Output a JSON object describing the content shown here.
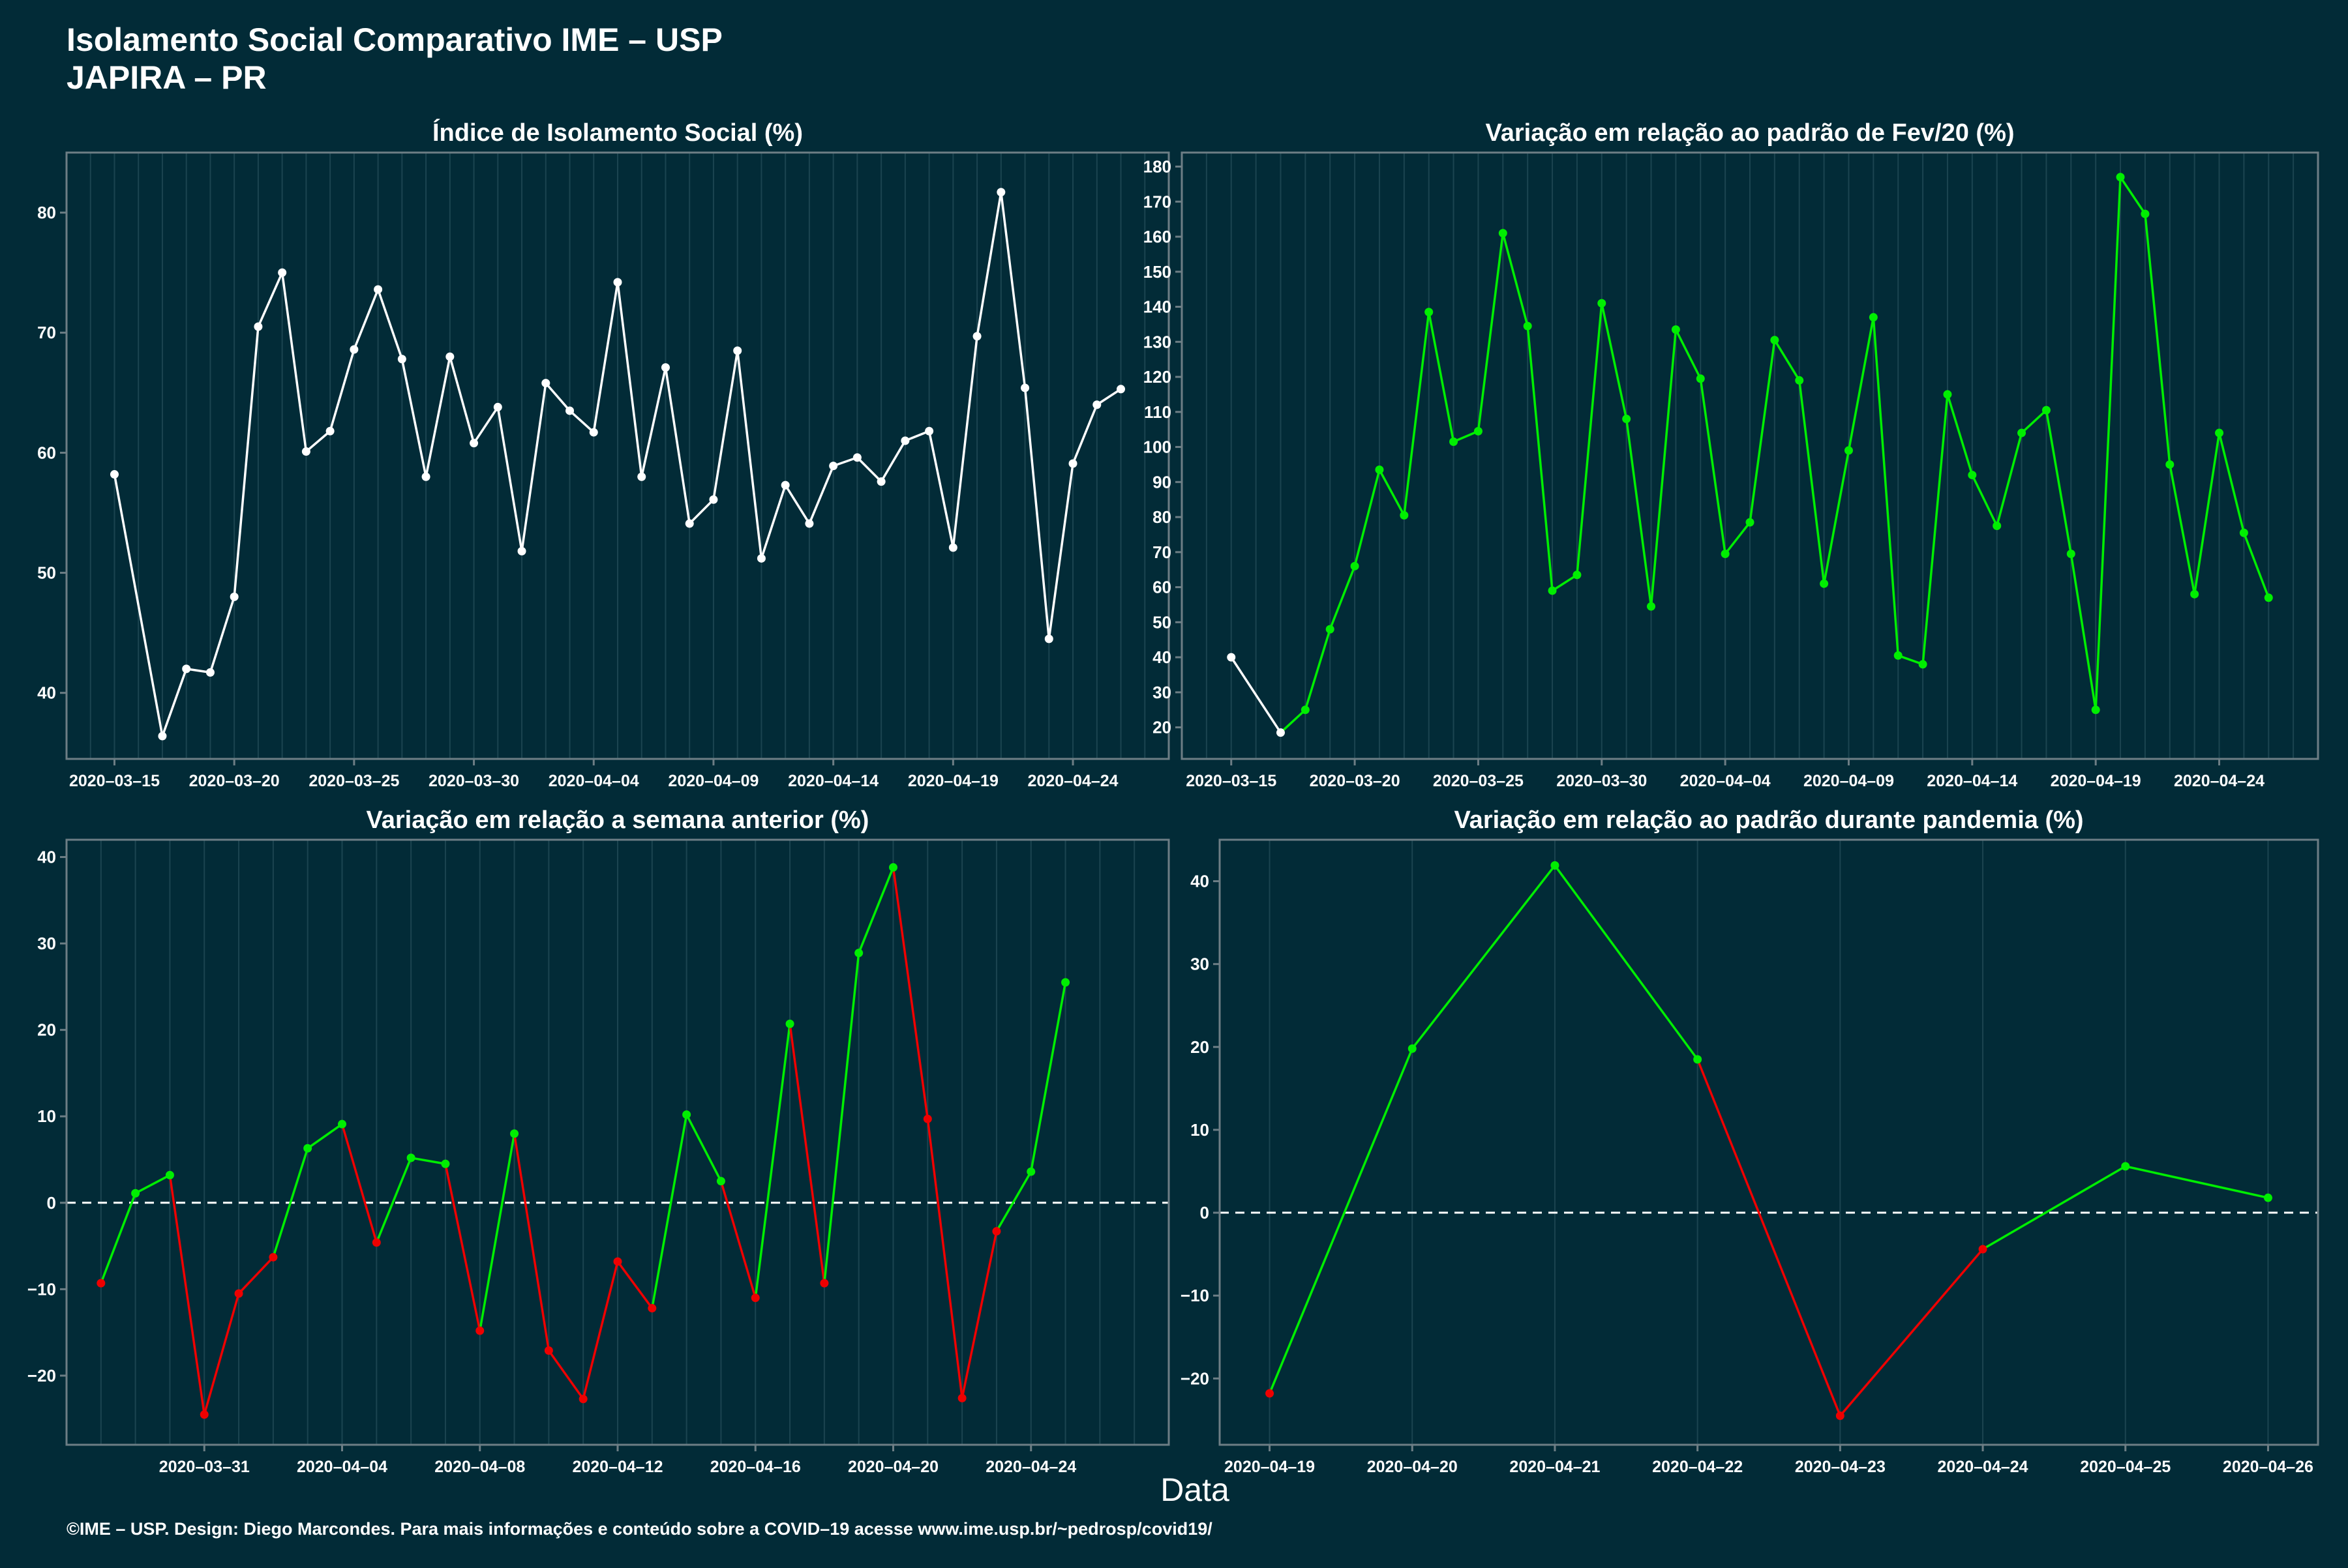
{
  "header": {
    "title_line1": "Isolamento Social Comparativo IME – USP",
    "title_line2": "JAPIRA – PR"
  },
  "x_axis_label": "Data",
  "footer": "©IME – USP. Design: Diego Marcondes. Para mais informações e conteúdo sobre a COVID–19 acesse www.ime.usp.br/~pedrosp/covid19/",
  "colors": {
    "background": "#022b37",
    "panel_border": "#6d7e85",
    "grid": "#1b4450",
    "white": "#ffffff",
    "green": "#00ee00",
    "red": "#ee0000"
  },
  "chart_data": [
    {
      "id": "isolamento",
      "type": "line",
      "title": "Índice de Isolamento Social (%)",
      "x_type": "date",
      "x": [
        "2020-03-15",
        "2020-03-17",
        "2020-03-18",
        "2020-03-19",
        "2020-03-20",
        "2020-03-21",
        "2020-03-22",
        "2020-03-23",
        "2020-03-24",
        "2020-03-25",
        "2020-03-26",
        "2020-03-27",
        "2020-03-28",
        "2020-03-29",
        "2020-03-30",
        "2020-03-31",
        "2020-04-01",
        "2020-04-02",
        "2020-04-03",
        "2020-04-04",
        "2020-04-05",
        "2020-04-06",
        "2020-04-07",
        "2020-04-08",
        "2020-04-09",
        "2020-04-10",
        "2020-04-11",
        "2020-04-12",
        "2020-04-13",
        "2020-04-14",
        "2020-04-15",
        "2020-04-16",
        "2020-04-17",
        "2020-04-18",
        "2020-04-19",
        "2020-04-20",
        "2020-04-21",
        "2020-04-22",
        "2020-04-23",
        "2020-04-24",
        "2020-04-25",
        "2020-04-26"
      ],
      "y": [
        58.2,
        36.4,
        42.0,
        41.7,
        48.0,
        70.5,
        75.0,
        60.1,
        61.8,
        68.6,
        73.6,
        67.8,
        58.0,
        68.0,
        60.8,
        63.8,
        51.8,
        65.8,
        63.5,
        61.7,
        74.2,
        58.0,
        67.1,
        54.1,
        56.1,
        68.5,
        51.2,
        57.3,
        54.1,
        58.9,
        59.6,
        57.6,
        61.0,
        61.8,
        52.1,
        69.7,
        81.7,
        65.4,
        44.5,
        59.1,
        64.0,
        65.3
      ],
      "colors": [
        "white",
        "white",
        "white",
        "white",
        "white",
        "white",
        "white",
        "white",
        "white",
        "white",
        "white",
        "white",
        "white",
        "white",
        "white",
        "white",
        "white",
        "white",
        "white",
        "white",
        "white",
        "white",
        "white",
        "white",
        "white",
        "white",
        "white",
        "white",
        "white",
        "white",
        "white",
        "white",
        "white",
        "white",
        "white",
        "white",
        "white",
        "white",
        "white",
        "white",
        "white",
        "white"
      ],
      "xlim": [
        "2013-03-13",
        "2020-04-28"
      ],
      "ylim": [
        34.5,
        85
      ],
      "x_ticks": [
        "2020-03-15",
        "2020-03-20",
        "2020-03-25",
        "2020-03-30",
        "2020-04-04",
        "2020-04-09",
        "2020-04-14",
        "2020-04-19",
        "2020-04-24"
      ],
      "y_ticks": [
        "40",
        "50",
        "60",
        "70",
        "80"
      ],
      "hline": null,
      "grid": true
    },
    {
      "id": "padrao_fev",
      "type": "line",
      "title": "Variação em relação ao padrão de Fev/20 (%)",
      "x_type": "date",
      "x": [
        "2020-03-15",
        "2020-03-17",
        "2020-03-18",
        "2020-03-19",
        "2020-03-20",
        "2020-03-21",
        "2020-03-22",
        "2020-03-23",
        "2020-03-24",
        "2020-03-25",
        "2020-03-26",
        "2020-03-27",
        "2020-03-28",
        "2020-03-29",
        "2020-03-30",
        "2020-03-31",
        "2020-04-01",
        "2020-04-02",
        "2020-04-03",
        "2020-04-04",
        "2020-04-05",
        "2020-04-06",
        "2020-04-07",
        "2020-04-08",
        "2020-04-09",
        "2020-04-10",
        "2020-04-11",
        "2020-04-12",
        "2020-04-13",
        "2020-04-14",
        "2020-04-15",
        "2020-04-16",
        "2020-04-17",
        "2020-04-18",
        "2020-04-19",
        "2020-04-20",
        "2020-04-21",
        "2020-04-22",
        "2020-04-23",
        "2020-04-24",
        "2020-04-25",
        "2020-04-26"
      ],
      "y": [
        40,
        18.5,
        25,
        48,
        66,
        93.5,
        80.5,
        138.5,
        101.5,
        104.5,
        161,
        134.5,
        59,
        63.5,
        141,
        108,
        54.5,
        133.5,
        119.5,
        69.5,
        78.5,
        130.5,
        119,
        61,
        99,
        137,
        40.5,
        38,
        115,
        92,
        77.5,
        104,
        110.5,
        69.5,
        25,
        177,
        166.5,
        95,
        58,
        104,
        75.5,
        57
      ],
      "colors": [
        "white",
        "white",
        "green",
        "green",
        "green",
        "green",
        "green",
        "green",
        "green",
        "green",
        "green",
        "green",
        "green",
        "green",
        "green",
        "green",
        "green",
        "green",
        "green",
        "green",
        "green",
        "green",
        "green",
        "green",
        "green",
        "green",
        "green",
        "green",
        "green",
        "green",
        "green",
        "green",
        "green",
        "green",
        "green",
        "green",
        "green",
        "green",
        "green",
        "green",
        "green",
        "green"
      ],
      "xlim": [
        "2020-03-13",
        "2020-04-28"
      ],
      "ylim": [
        11,
        184
      ],
      "x_ticks": [
        "2020-03-15",
        "2020-03-20",
        "2020-03-25",
        "2020-03-30",
        "2020-04-04",
        "2020-04-09",
        "2020-04-14",
        "2020-04-19",
        "2020-04-24"
      ],
      "y_ticks": [
        "20",
        "30",
        "40",
        "50",
        "60",
        "70",
        "80",
        "90",
        "100",
        "110",
        "120",
        "130",
        "140",
        "150",
        "160",
        "170",
        "180"
      ],
      "hline": null,
      "grid": true
    },
    {
      "id": "semana_anterior",
      "type": "line",
      "title": "Variação em relação a semana anterior (%)",
      "x_type": "date",
      "x": [
        "2020-03-28",
        "2020-03-29",
        "2020-03-30",
        "2020-03-31",
        "2020-04-01",
        "2020-04-02",
        "2020-04-03",
        "2020-04-04",
        "2020-04-05",
        "2020-04-06",
        "2020-04-07",
        "2020-04-08",
        "2020-04-09",
        "2020-04-10",
        "2020-04-11",
        "2020-04-12",
        "2020-04-13",
        "2020-04-14",
        "2020-04-15",
        "2020-04-16",
        "2020-04-17",
        "2020-04-18",
        "2020-04-19",
        "2020-04-20",
        "2020-04-21",
        "2020-04-22",
        "2020-04-23",
        "2020-04-24",
        "2020-04-25",
        "2020-04-26"
      ],
      "y": [
        -9.3,
        1.1,
        3.2,
        -24.5,
        -10.5,
        -6.3,
        6.3,
        9.1,
        -4.6,
        5.2,
        4.5,
        -14.8,
        8.0,
        -17.1,
        -22.7,
        -6.8,
        -12.2,
        10.2,
        2.5,
        -11.0,
        20.7,
        -9.3,
        28.9,
        38.8,
        9.7,
        -22.6,
        -3.3,
        3.6,
        25.5,
        null
      ],
      "colors": [
        "red",
        "green",
        "green",
        "red",
        "red",
        "red",
        "green",
        "green",
        "red",
        "green",
        "green",
        "red",
        "green",
        "red",
        "red",
        "red",
        "red",
        "green",
        "green",
        "red",
        "green",
        "red",
        "green",
        "green",
        "red",
        "red",
        "red",
        "green",
        "green",
        "green"
      ],
      "xlim": [
        "2020-03-27",
        "2020-04-28"
      ],
      "ylim": [
        -28,
        42
      ],
      "x_ticks": [
        "2020-03-31",
        "2020-04-04",
        "2020-04-08",
        "2020-04-12",
        "2020-04-16",
        "2020-04-20",
        "2020-04-24"
      ],
      "y_ticks": [
        "-20",
        "-10",
        "0",
        "10",
        "20",
        "30",
        "40"
      ],
      "hline": 0,
      "grid": true
    },
    {
      "id": "padrao_pandemia",
      "type": "line",
      "title": "Variação em relação ao padrão durante pandemia (%)",
      "x_type": "date",
      "x": [
        "2020-04-19",
        "2020-04-20",
        "2020-04-21",
        "2020-04-22",
        "2020-04-23",
        "2020-04-24",
        "2020-04-25",
        "2020-04-26"
      ],
      "y": [
        -21.8,
        19.8,
        41.9,
        18.5,
        -24.5,
        -4.4,
        5.6,
        1.8
      ],
      "colors": [
        "red",
        "green",
        "green",
        "green",
        "red",
        "red",
        "green",
        "green"
      ],
      "xlim": [
        "2020-04-18.65",
        "2020-04-26.35"
      ],
      "ylim": [
        -28,
        45
      ],
      "x_ticks": [
        "2020-04-19",
        "2020-04-20",
        "2020-04-21",
        "2020-04-22",
        "2020-04-23",
        "2020-04-24",
        "2020-04-25",
        "2020-04-26"
      ],
      "y_ticks": [
        "-20",
        "-10",
        "0",
        "10",
        "20",
        "30",
        "40"
      ],
      "hline": 0,
      "grid": true
    }
  ]
}
